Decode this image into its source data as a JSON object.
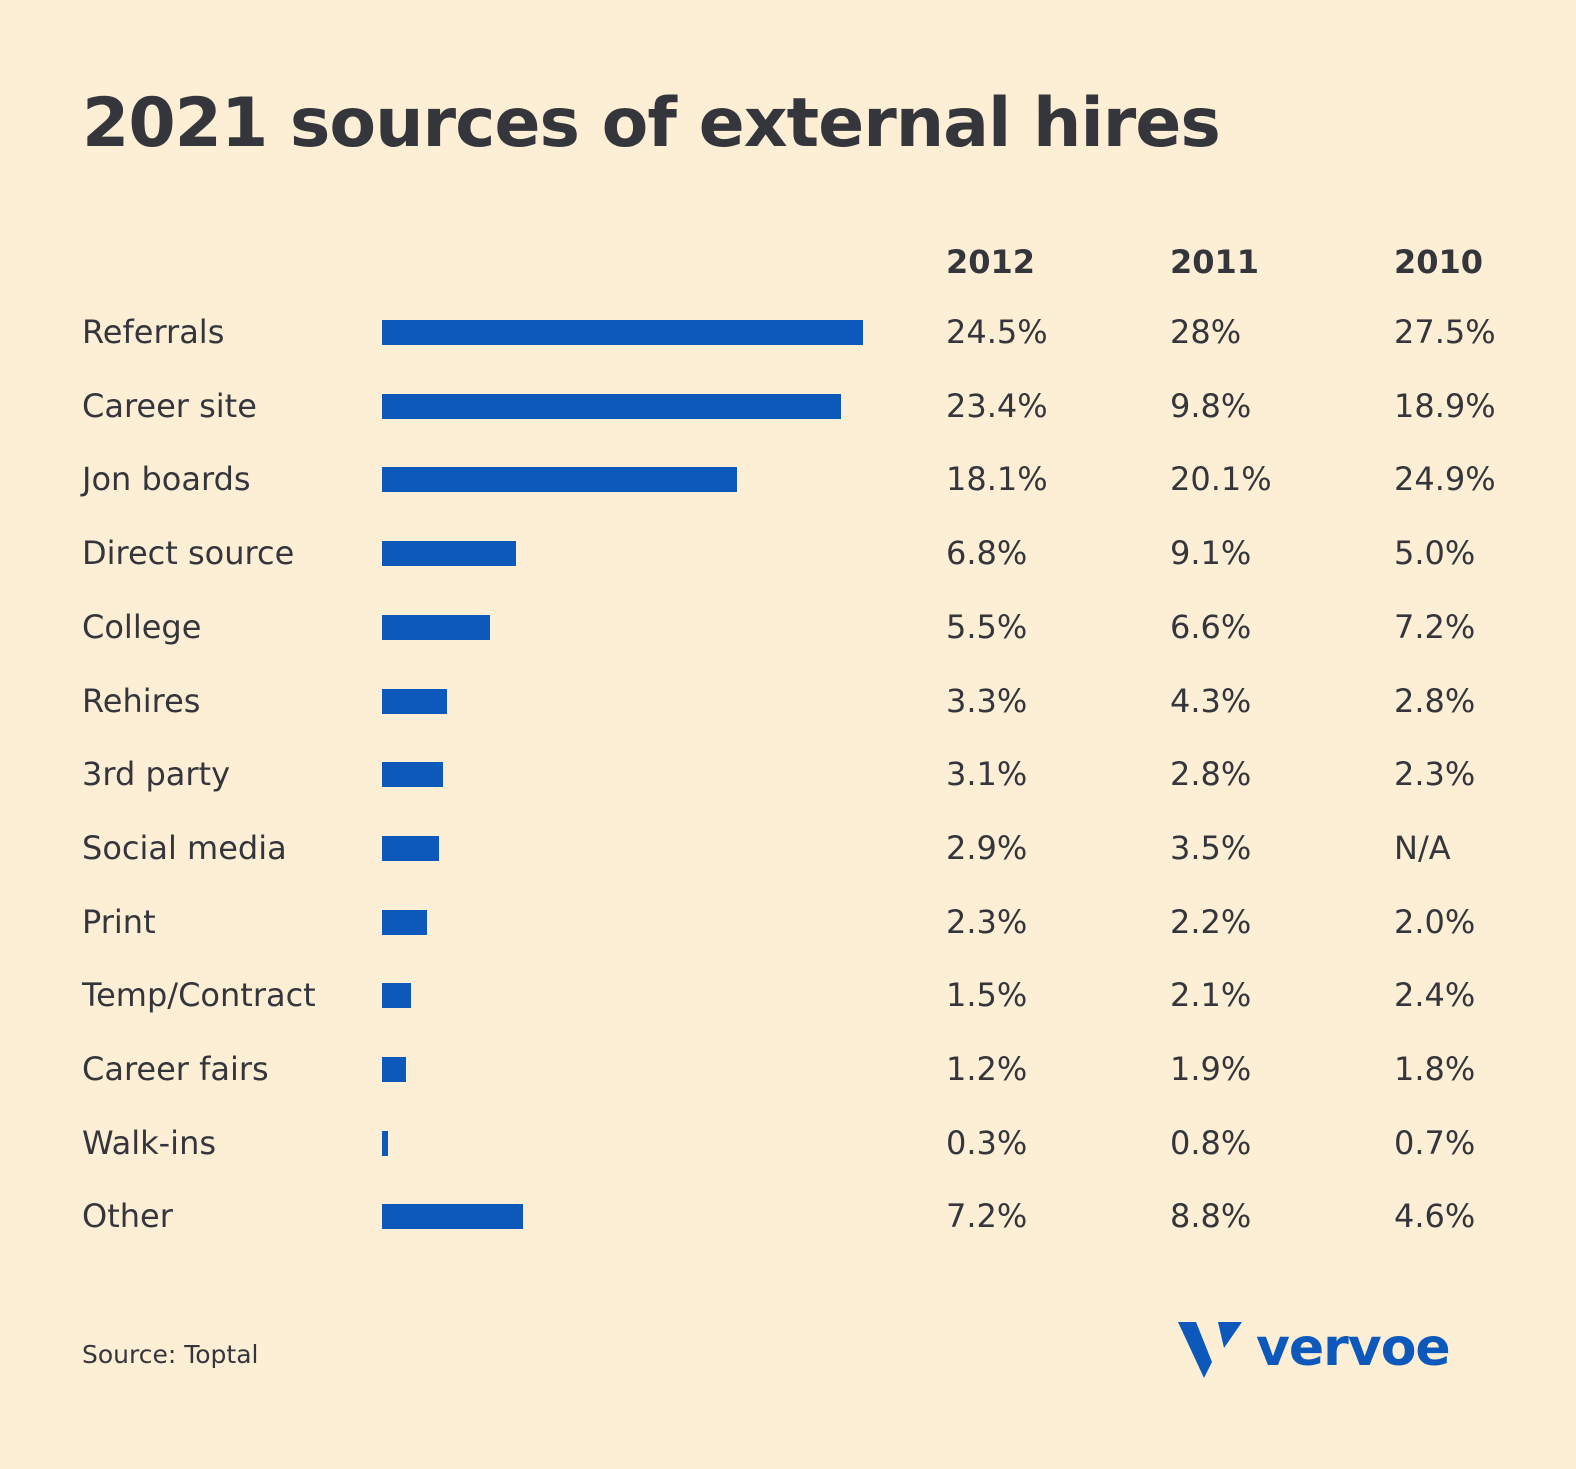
{
  "title": "2021 sources of external hires",
  "source_note": "Source: Toptal",
  "brand": {
    "name": "vervoe",
    "color": "#0d58bb"
  },
  "colors": {
    "background": "#fdefd6",
    "bar": "#0d58bb",
    "text": "#34363c"
  },
  "chart_data": {
    "type": "bar",
    "orientation": "horizontal",
    "title": "2021 sources of external hires",
    "bar_series": "2012",
    "columns": [
      "2012",
      "2011",
      "2010"
    ],
    "categories": [
      "Referrals",
      "Career site",
      "Jon boards",
      "Direct source",
      "College",
      "Rehires",
      "3rd party",
      "Social media",
      "Print",
      "Temp/Contract",
      "Career fairs",
      "Walk-ins",
      "Other"
    ],
    "values": [
      24.5,
      23.4,
      18.1,
      6.8,
      5.5,
      3.3,
      3.1,
      2.9,
      2.3,
      1.5,
      1.2,
      0.3,
      7.2
    ],
    "table": [
      [
        "24.5%",
        "28%",
        "27.5%"
      ],
      [
        "23.4%",
        "9.8%",
        "18.9%"
      ],
      [
        "18.1%",
        "20.1%",
        "24.9%"
      ],
      [
        "6.8%",
        "9.1%",
        "5.0%"
      ],
      [
        "5.5%",
        "6.6%",
        "7.2%"
      ],
      [
        "3.3%",
        "4.3%",
        "2.8%"
      ],
      [
        "3.1%",
        "2.8%",
        "2.3%"
      ],
      [
        "2.9%",
        "3.5%",
        "N/A"
      ],
      [
        "2.3%",
        "2.2%",
        "2.0%"
      ],
      [
        "1.5%",
        "2.1%",
        "2.4%"
      ],
      [
        "1.2%",
        "1.9%",
        "1.8%"
      ],
      [
        "0.3%",
        "0.8%",
        "0.7%"
      ],
      [
        "7.2%",
        "8.8%",
        "4.6%"
      ]
    ],
    "xlim": [
      0,
      24.5
    ],
    "grid": false,
    "legend": "none"
  }
}
